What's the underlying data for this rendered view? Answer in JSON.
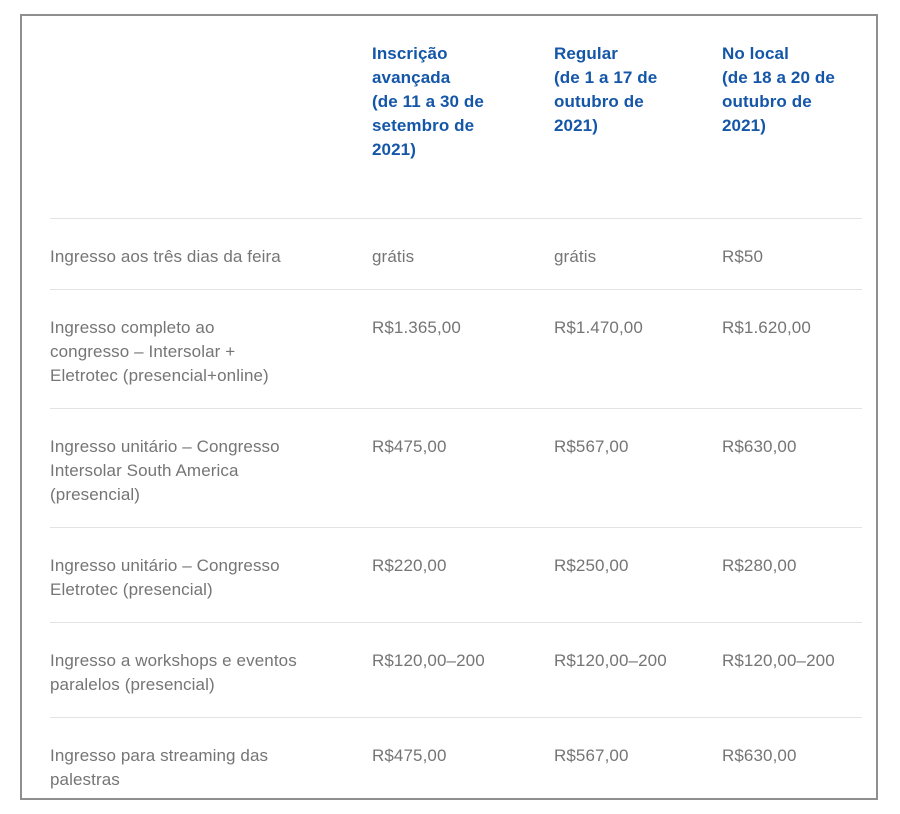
{
  "panel": {
    "name": "pricing-table-panel"
  },
  "colors": {
    "header_text": "#1456a8",
    "body_text": "#757575",
    "divider": "#e3e3e3",
    "panel_border": "#8f8f8f",
    "background": "#ffffff"
  },
  "table": {
    "headers": [
      "",
      "Inscrição\navançada\n(de 11 a 30 de\nsetembro de\n2021)",
      "Regular\n(de 1 a 17 de\noutubro de\n2021)",
      "No local\n(de 18 a 20 de\noutubro de\n2021)"
    ],
    "rows": [
      {
        "label": "Ingresso aos três dias da feira",
        "values": [
          "grátis",
          "grátis",
          "R$50"
        ]
      },
      {
        "label": "Ingresso completo ao\ncongresso – Intersolar +\nEletrotec (presencial+online)",
        "values": [
          "R$1.365,00",
          "R$1.470,00",
          "R$1.620,00"
        ]
      },
      {
        "label": "Ingresso unitário – Congresso\nIntersolar South America\n(presencial)",
        "values": [
          "R$475,00",
          "R$567,00",
          "R$630,00"
        ]
      },
      {
        "label": "Ingresso unitário – Congresso\nEletrotec (presencial)",
        "values": [
          "R$220,00",
          "R$250,00",
          "R$280,00"
        ]
      },
      {
        "label": "Ingresso a workshops e eventos\nparalelos (presencial)",
        "values": [
          "R$120,00–200",
          "R$120,00–200",
          "R$120,00–200"
        ]
      },
      {
        "label": "Ingresso para streaming das\npalestras",
        "values": [
          "R$475,00",
          "R$567,00",
          "R$630,00"
        ]
      }
    ]
  },
  "chart_data": {
    "type": "table",
    "title": "",
    "columns": [
      "",
      "Inscrição avançada (de 11 a 30 de setembro de 2021)",
      "Regular (de 1 a 17 de outubro de 2021)",
      "No local (de 18 a 20 de outubro de 2021)"
    ],
    "rows": [
      [
        "Ingresso aos três dias da feira",
        "grátis",
        "grátis",
        "R$50"
      ],
      [
        "Ingresso completo ao congresso – Intersolar + Eletrotec (presencial+online)",
        "R$1.365,00",
        "R$1.470,00",
        "R$1.620,00"
      ],
      [
        "Ingresso unitário – Congresso Intersolar South America (presencial)",
        "R$475,00",
        "R$567,00",
        "R$630,00"
      ],
      [
        "Ingresso unitário – Congresso Eletrotec (presencial)",
        "R$220,00",
        "R$250,00",
        "R$280,00"
      ],
      [
        "Ingresso a workshops e eventos paralelos (presencial)",
        "R$120,00–200",
        "R$120,00–200",
        "R$120,00–200"
      ],
      [
        "Ingresso para streaming das palestras",
        "R$475,00",
        "R$567,00",
        "R$630,00"
      ]
    ]
  }
}
